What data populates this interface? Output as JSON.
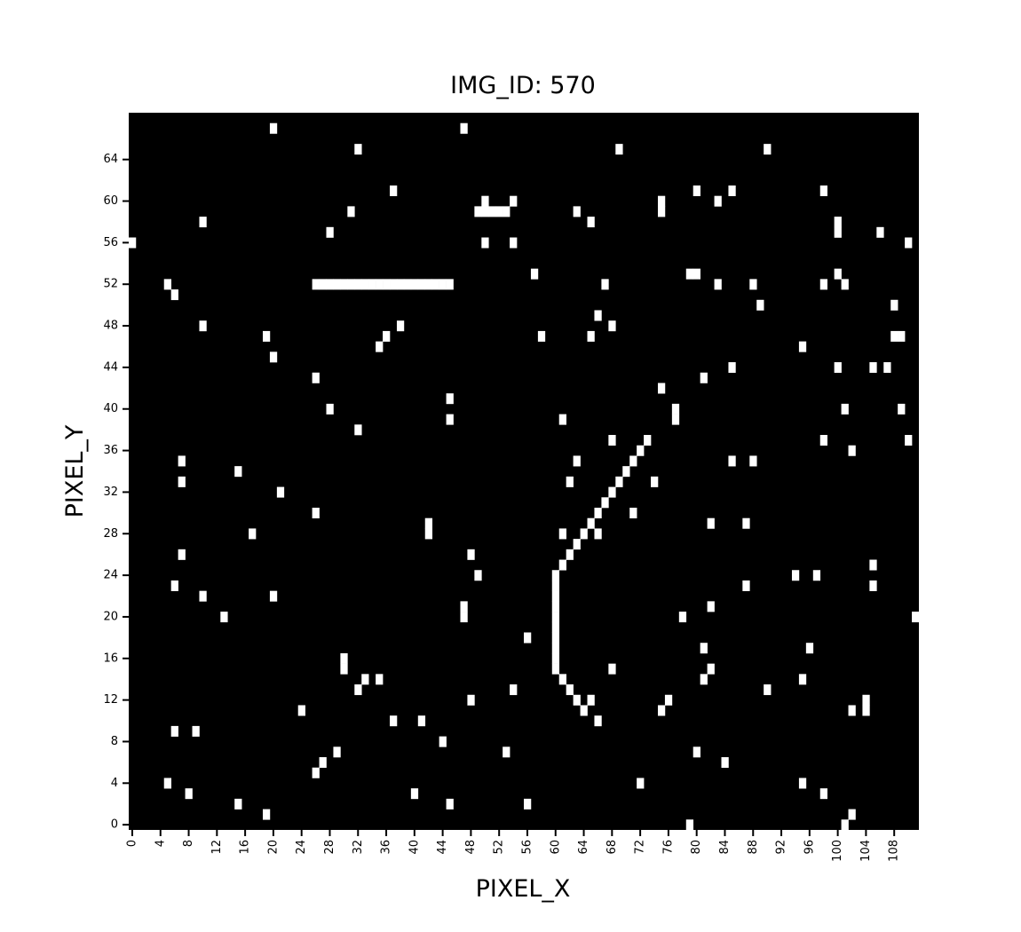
{
  "chart_data": {
    "type": "heatmap",
    "title": "IMG_ID: 570",
    "xlabel": "PIXEL_X",
    "ylabel": "PIXEL_Y",
    "xlim": [
      0,
      111
    ],
    "ylim": [
      0,
      68
    ],
    "x_ticks": [
      0,
      4,
      8,
      12,
      16,
      20,
      24,
      28,
      32,
      36,
      40,
      44,
      48,
      52,
      56,
      60,
      64,
      68,
      72,
      76,
      80,
      84,
      88,
      92,
      96,
      100,
      104,
      108
    ],
    "y_ticks": [
      0,
      4,
      8,
      12,
      16,
      20,
      24,
      28,
      32,
      36,
      40,
      44,
      48,
      52,
      56,
      60,
      64
    ],
    "background_color": "#000000",
    "pixel_color": "#ffffff",
    "pixels": [
      [
        20,
        67
      ],
      [
        47,
        67
      ],
      [
        32,
        65
      ],
      [
        69,
        65
      ],
      [
        90,
        65
      ],
      [
        37,
        61
      ],
      [
        80,
        61
      ],
      [
        85,
        61
      ],
      [
        98,
        61
      ],
      [
        50,
        60
      ],
      [
        54,
        60
      ],
      [
        75,
        60
      ],
      [
        83,
        60
      ],
      [
        31,
        59
      ],
      [
        49,
        59
      ],
      [
        50,
        59
      ],
      [
        51,
        59
      ],
      [
        52,
        59
      ],
      [
        53,
        59
      ],
      [
        63,
        59
      ],
      [
        75,
        59
      ],
      [
        10,
        58
      ],
      [
        65,
        58
      ],
      [
        100,
        58
      ],
      [
        28,
        57
      ],
      [
        100,
        57
      ],
      [
        106,
        57
      ],
      [
        0,
        56
      ],
      [
        50,
        56
      ],
      [
        54,
        56
      ],
      [
        110,
        56
      ],
      [
        57,
        53
      ],
      [
        79,
        53
      ],
      [
        80,
        53
      ],
      [
        100,
        53
      ],
      [
        5,
        52
      ],
      [
        26,
        52
      ],
      [
        27,
        52
      ],
      [
        28,
        52
      ],
      [
        29,
        52
      ],
      [
        30,
        52
      ],
      [
        31,
        52
      ],
      [
        32,
        52
      ],
      [
        33,
        52
      ],
      [
        34,
        52
      ],
      [
        35,
        52
      ],
      [
        36,
        52
      ],
      [
        37,
        52
      ],
      [
        38,
        52
      ],
      [
        39,
        52
      ],
      [
        40,
        52
      ],
      [
        41,
        52
      ],
      [
        42,
        52
      ],
      [
        43,
        52
      ],
      [
        44,
        52
      ],
      [
        45,
        52
      ],
      [
        67,
        52
      ],
      [
        83,
        52
      ],
      [
        88,
        52
      ],
      [
        98,
        52
      ],
      [
        101,
        52
      ],
      [
        6,
        51
      ],
      [
        89,
        50
      ],
      [
        108,
        50
      ],
      [
        66,
        49
      ],
      [
        10,
        48
      ],
      [
        38,
        48
      ],
      [
        68,
        48
      ],
      [
        19,
        47
      ],
      [
        36,
        47
      ],
      [
        58,
        47
      ],
      [
        65,
        47
      ],
      [
        108,
        47
      ],
      [
        109,
        47
      ],
      [
        35,
        46
      ],
      [
        95,
        46
      ],
      [
        20,
        45
      ],
      [
        85,
        44
      ],
      [
        100,
        44
      ],
      [
        105,
        44
      ],
      [
        107,
        44
      ],
      [
        26,
        43
      ],
      [
        81,
        43
      ],
      [
        75,
        42
      ],
      [
        45,
        41
      ],
      [
        28,
        40
      ],
      [
        77,
        40
      ],
      [
        101,
        40
      ],
      [
        109,
        40
      ],
      [
        45,
        39
      ],
      [
        61,
        39
      ],
      [
        77,
        39
      ],
      [
        32,
        38
      ],
      [
        68,
        37
      ],
      [
        73,
        37
      ],
      [
        98,
        37
      ],
      [
        110,
        37
      ],
      [
        72,
        36
      ],
      [
        102,
        36
      ],
      [
        7,
        35
      ],
      [
        63,
        35
      ],
      [
        71,
        35
      ],
      [
        85,
        35
      ],
      [
        88,
        35
      ],
      [
        15,
        34
      ],
      [
        70,
        34
      ],
      [
        7,
        33
      ],
      [
        62,
        33
      ],
      [
        69,
        33
      ],
      [
        74,
        33
      ],
      [
        21,
        32
      ],
      [
        68,
        32
      ],
      [
        67,
        31
      ],
      [
        26,
        30
      ],
      [
        66,
        30
      ],
      [
        71,
        30
      ],
      [
        42,
        29
      ],
      [
        65,
        29
      ],
      [
        82,
        29
      ],
      [
        87,
        29
      ],
      [
        17,
        28
      ],
      [
        42,
        28
      ],
      [
        61,
        28
      ],
      [
        64,
        28
      ],
      [
        66,
        28
      ],
      [
        63,
        27
      ],
      [
        7,
        26
      ],
      [
        48,
        26
      ],
      [
        62,
        26
      ],
      [
        61,
        25
      ],
      [
        105,
        25
      ],
      [
        49,
        24
      ],
      [
        60,
        24
      ],
      [
        94,
        24
      ],
      [
        97,
        24
      ],
      [
        6,
        23
      ],
      [
        60,
        23
      ],
      [
        87,
        23
      ],
      [
        105,
        23
      ],
      [
        10,
        22
      ],
      [
        20,
        22
      ],
      [
        60,
        22
      ],
      [
        47,
        21
      ],
      [
        60,
        21
      ],
      [
        82,
        21
      ],
      [
        13,
        20
      ],
      [
        47,
        20
      ],
      [
        60,
        20
      ],
      [
        78,
        20
      ],
      [
        111,
        20
      ],
      [
        60,
        19
      ],
      [
        56,
        18
      ],
      [
        60,
        18
      ],
      [
        60,
        17
      ],
      [
        81,
        17
      ],
      [
        96,
        17
      ],
      [
        30,
        16
      ],
      [
        60,
        16
      ],
      [
        30,
        15
      ],
      [
        60,
        15
      ],
      [
        68,
        15
      ],
      [
        82,
        15
      ],
      [
        33,
        14
      ],
      [
        35,
        14
      ],
      [
        61,
        14
      ],
      [
        81,
        14
      ],
      [
        95,
        14
      ],
      [
        32,
        13
      ],
      [
        54,
        13
      ],
      [
        62,
        13
      ],
      [
        90,
        13
      ],
      [
        48,
        12
      ],
      [
        63,
        12
      ],
      [
        65,
        12
      ],
      [
        76,
        12
      ],
      [
        104,
        12
      ],
      [
        24,
        11
      ],
      [
        64,
        11
      ],
      [
        75,
        11
      ],
      [
        102,
        11
      ],
      [
        104,
        11
      ],
      [
        37,
        10
      ],
      [
        41,
        10
      ],
      [
        66,
        10
      ],
      [
        6,
        9
      ],
      [
        9,
        9
      ],
      [
        44,
        8
      ],
      [
        29,
        7
      ],
      [
        53,
        7
      ],
      [
        80,
        7
      ],
      [
        27,
        6
      ],
      [
        84,
        6
      ],
      [
        26,
        5
      ],
      [
        5,
        4
      ],
      [
        72,
        4
      ],
      [
        95,
        4
      ],
      [
        8,
        3
      ],
      [
        40,
        3
      ],
      [
        98,
        3
      ],
      [
        15,
        2
      ],
      [
        45,
        2
      ],
      [
        56,
        2
      ],
      [
        19,
        1
      ],
      [
        102,
        1
      ],
      [
        79,
        0
      ],
      [
        101,
        0
      ]
    ]
  }
}
